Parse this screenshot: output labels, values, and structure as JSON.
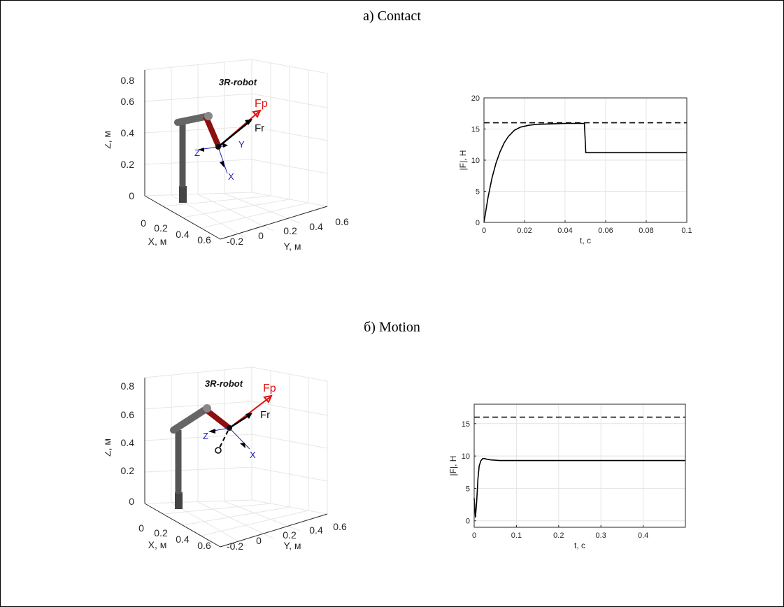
{
  "captions": {
    "top": "а) Contact",
    "bottom": "б) Motion"
  },
  "robot_panels": [
    {
      "title": "3R-robot",
      "z_ticks": [
        "0",
        "0.2",
        "0.4",
        "0.6",
        "0.8"
      ],
      "x_ticks": [
        "0",
        "0.2",
        "0.4",
        "0.6"
      ],
      "y_ticks": [
        "-0.2",
        "0",
        "0.2",
        "0.4",
        "0.6"
      ],
      "zlabel": "Z, м",
      "xlabel": "X, м",
      "ylabel": "Y, м",
      "vec_fp": "Fp",
      "vec_fr": "Fr",
      "axis_x": "X",
      "axis_y": "Y",
      "axis_z": "Z"
    },
    {
      "title": "3R-robot",
      "z_ticks": [
        "0",
        "0.2",
        "0.4",
        "0.6",
        "0.8"
      ],
      "x_ticks": [
        "0",
        "0.2",
        "0.4",
        "0.6"
      ],
      "y_ticks": [
        "-0.2",
        "0",
        "0.2",
        "0.4",
        "0.6"
      ],
      "zlabel": "Z, м",
      "xlabel": "X, м",
      "ylabel": "Y, м",
      "vec_fp": "Fp",
      "vec_fr": "Fr",
      "axis_x": "X",
      "axis_y": "",
      "axis_z": "Z"
    }
  ],
  "colors": {
    "link": "#555555",
    "red_link": "#a01010",
    "fp": "#e01010",
    "fr": "#000000",
    "frame_axes": "#2020c0"
  },
  "chart_data": [
    {
      "type": "line",
      "xlabel": "t, c",
      "ylabel": "|F|, H",
      "xlim": [
        0,
        0.1
      ],
      "ylim": [
        0,
        20
      ],
      "xticks": [
        0,
        0.02,
        0.04,
        0.06,
        0.08,
        0.1
      ],
      "xtick_labels": [
        "0",
        "0.02",
        "0.04",
        "0.06",
        "0.08",
        "0.1"
      ],
      "yticks": [
        0,
        5,
        10,
        15,
        20
      ],
      "ytick_labels": [
        "0",
        "5",
        "10",
        "15",
        "20"
      ],
      "grid": true,
      "series": [
        {
          "style": "solid",
          "x": [
            0,
            0.002,
            0.004,
            0.006,
            0.008,
            0.01,
            0.012,
            0.015,
            0.018,
            0.022,
            0.026,
            0.03,
            0.035,
            0.04,
            0.045,
            0.0495,
            0.0502,
            0.06,
            0.08,
            0.1
          ],
          "y": [
            0,
            4.0,
            7.2,
            9.6,
            11.4,
            12.8,
            13.8,
            14.8,
            15.3,
            15.6,
            15.75,
            15.8,
            15.85,
            15.9,
            15.9,
            15.9,
            11.2,
            11.2,
            11.2,
            11.2
          ]
        },
        {
          "style": "dashed",
          "x": [
            0,
            0.1
          ],
          "y": [
            16,
            16
          ]
        }
      ]
    },
    {
      "type": "line",
      "xlabel": "t, c",
      "ylabel": "|F|, H",
      "xlim": [
        0,
        0.5
      ],
      "ylim": [
        -1,
        18
      ],
      "xticks": [
        0,
        0.1,
        0.2,
        0.3,
        0.4
      ],
      "xtick_labels": [
        "0",
        "0.1",
        "0.2",
        "0.3",
        "0.4"
      ],
      "yticks": [
        0,
        5,
        10,
        15
      ],
      "ytick_labels": [
        "0",
        "5",
        "10",
        "15"
      ],
      "grid": true,
      "series": [
        {
          "style": "solid",
          "x": [
            0,
            0.003,
            0.006,
            0.009,
            0.012,
            0.016,
            0.02,
            0.025,
            0.03,
            0.04,
            0.05,
            0.06,
            0.1,
            0.2,
            0.3,
            0.4,
            0.5
          ],
          "y": [
            3.5,
            0.5,
            3.0,
            6.5,
            8.5,
            9.3,
            9.6,
            9.6,
            9.5,
            9.4,
            9.35,
            9.3,
            9.3,
            9.3,
            9.3,
            9.3,
            9.3
          ]
        },
        {
          "style": "dashed",
          "x": [
            0,
            0.5
          ],
          "y": [
            16,
            16
          ]
        }
      ]
    }
  ]
}
